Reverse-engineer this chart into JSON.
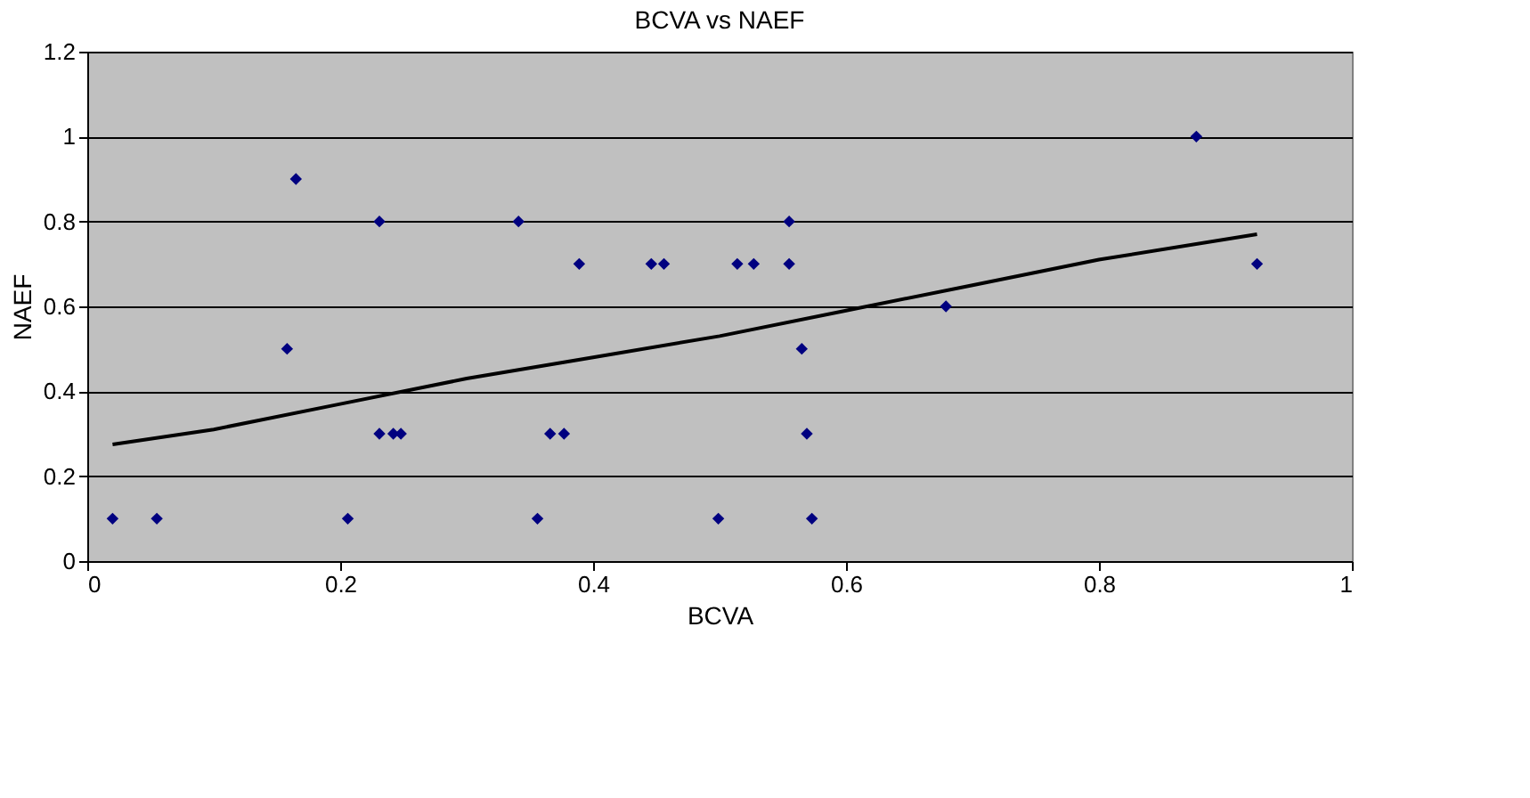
{
  "chart_data": {
    "type": "scatter",
    "title": "BCVA vs NAEF",
    "xlabel": "BCVA",
    "ylabel": "NAEF",
    "xlim": [
      0,
      1
    ],
    "xticks": [
      0,
      0.2,
      0.4,
      0.6,
      0.8,
      1
    ],
    "ylim": [
      0,
      1.2
    ],
    "yticks": [
      0,
      0.2,
      0.4,
      0.6,
      0.8,
      1,
      1.2
    ],
    "grid": "y",
    "marker": "diamond",
    "series": [
      {
        "color": "#000080",
        "x": [
          0.02,
          0.055,
          0.158,
          0.165,
          0.206,
          0.231,
          0.231,
          0.242,
          0.248,
          0.341,
          0.356,
          0.366,
          0.377,
          0.389,
          0.446,
          0.456,
          0.499,
          0.514,
          0.527,
          0.555,
          0.555,
          0.565,
          0.569,
          0.573,
          0.679,
          0.877,
          0.925
        ],
        "values": [
          0.1,
          0.1,
          0.5,
          0.9,
          0.1,
          0.8,
          0.3,
          0.3,
          0.3,
          0.8,
          0.1,
          0.3,
          0.3,
          0.7,
          0.7,
          0.7,
          0.1,
          0.7,
          0.7,
          0.8,
          0.7,
          0.5,
          0.3,
          0.1,
          0.6,
          1.0,
          0.7
        ]
      },
      {
        "type": "line",
        "marker": "none",
        "line_style": "solid",
        "color": "#000000",
        "x": [
          0.02,
          0.1,
          0.2,
          0.3,
          0.4,
          0.5,
          0.6,
          0.7,
          0.8,
          0.925
        ],
        "values": [
          0.275,
          0.31,
          0.37,
          0.43,
          0.48,
          0.53,
          0.59,
          0.65,
          0.71,
          0.77
        ]
      }
    ]
  }
}
